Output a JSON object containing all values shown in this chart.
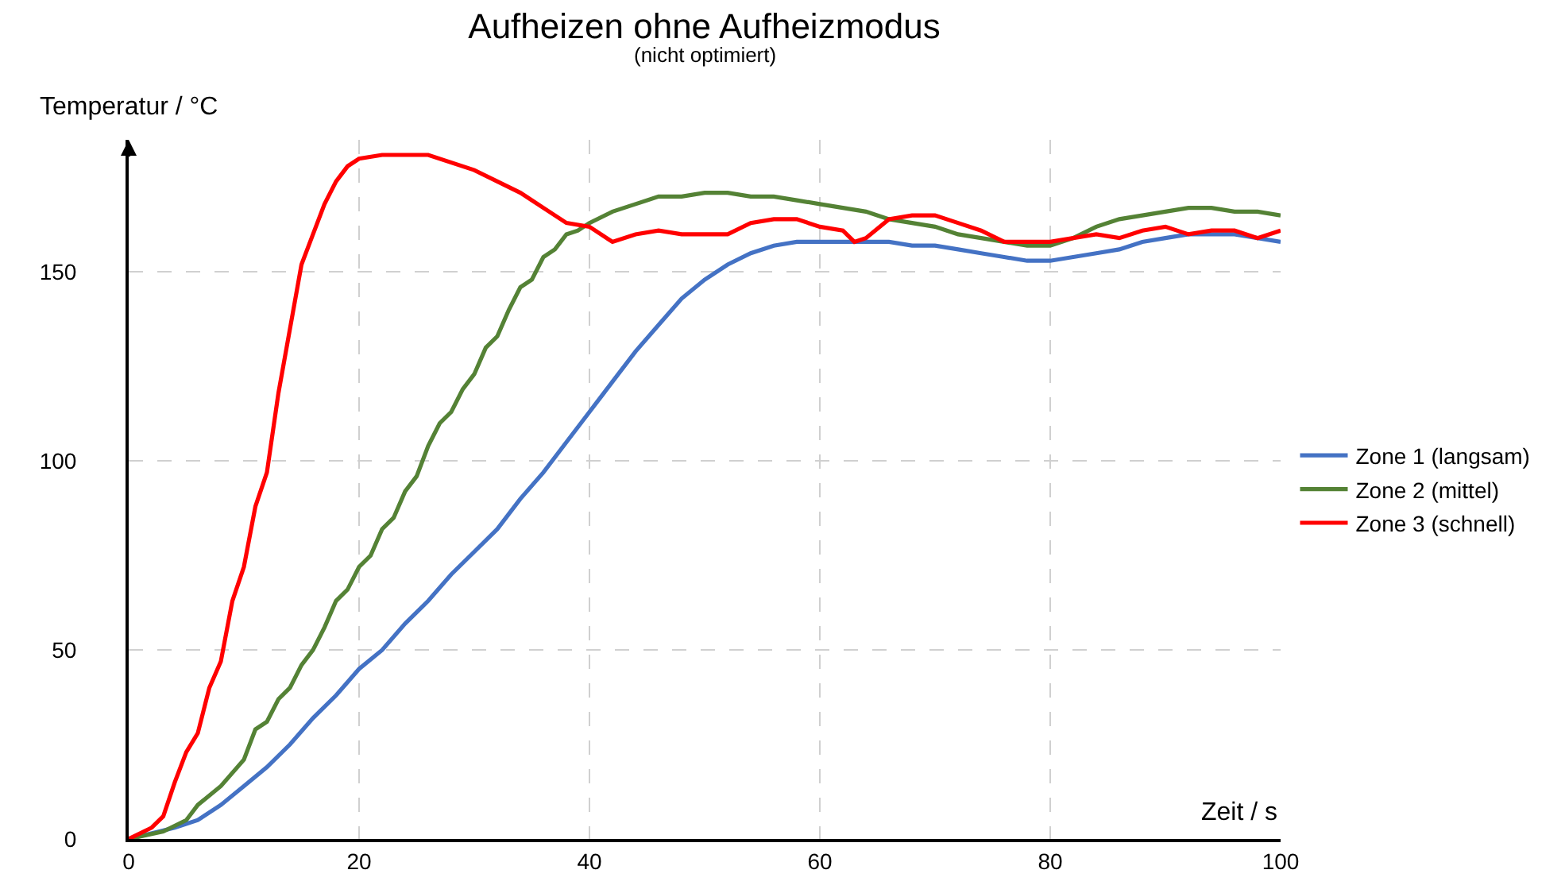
{
  "chart_data": {
    "type": "line",
    "title": "Aufheizen ohne Aufheizmodus",
    "subtitle": "(nicht optimiert)",
    "xlabel": "Zeit / s",
    "ylabel": "Temperatur / °C",
    "xlim": [
      0,
      100
    ],
    "xticks": [
      0,
      20,
      40,
      60,
      80,
      100
    ],
    "ylim": [
      0,
      185
    ],
    "yticks": [
      0,
      50,
      100,
      150
    ],
    "grid": true,
    "legend": "right",
    "line_style": "solid",
    "marker": "none",
    "series": [
      {
        "name": "Zone 1 (langsam)",
        "color": "#4472c4",
        "x": [
          0,
          4,
          6,
          8,
          10,
          12,
          14,
          16,
          18,
          20,
          22,
          24,
          26,
          28,
          30,
          32,
          34,
          36,
          38,
          40,
          42,
          44,
          46,
          48,
          50,
          52,
          54,
          56,
          58,
          60,
          66,
          68,
          70,
          72,
          74,
          76,
          78,
          80,
          82,
          84,
          86,
          88,
          90,
          92,
          94,
          96,
          98,
          100
        ],
        "values": [
          0,
          3,
          5,
          9,
          14,
          19,
          25,
          32,
          38,
          45,
          50,
          57,
          63,
          70,
          76,
          82,
          90,
          97,
          105,
          113,
          121,
          129,
          136,
          143,
          148,
          152,
          155,
          157,
          158,
          158,
          158,
          157,
          157,
          156,
          155,
          154,
          153,
          153,
          154,
          155,
          156,
          158,
          159,
          160,
          160,
          160,
          159,
          158
        ]
      },
      {
        "name": "Zone 2 (mittel)",
        "color": "#548235",
        "x": [
          0,
          3,
          5,
          6,
          8,
          10,
          11,
          12,
          13,
          14,
          15,
          16,
          17,
          18,
          19,
          20,
          21,
          22,
          23,
          24,
          25,
          26,
          27,
          28,
          29,
          30,
          31,
          32,
          33,
          34,
          35,
          36,
          37,
          38,
          39,
          40,
          42,
          44,
          46,
          48,
          50,
          52,
          54,
          56,
          58,
          60,
          62,
          64,
          66,
          68,
          70,
          72,
          74,
          76,
          78,
          80,
          82,
          84,
          86,
          88,
          90,
          92,
          94,
          96,
          98,
          100
        ],
        "values": [
          0,
          2,
          5,
          9,
          14,
          21,
          29,
          31,
          37,
          40,
          46,
          50,
          56,
          63,
          66,
          72,
          75,
          82,
          85,
          92,
          96,
          104,
          110,
          113,
          119,
          123,
          130,
          133,
          140,
          146,
          148,
          154,
          156,
          160,
          161,
          163,
          166,
          168,
          170,
          170,
          171,
          171,
          170,
          170,
          169,
          168,
          167,
          166,
          164,
          163,
          162,
          160,
          159,
          158,
          157,
          157,
          159,
          162,
          164,
          165,
          166,
          167,
          167,
          166,
          166,
          165
        ]
      },
      {
        "name": "Zone 3 (schnell)",
        "color": "#ff0000",
        "x": [
          0,
          2,
          3,
          4,
          5,
          6,
          7,
          8,
          9,
          10,
          11,
          12,
          13,
          14,
          15,
          16,
          17,
          18,
          19,
          20,
          22,
          26,
          30,
          32,
          34,
          36,
          38,
          40,
          42,
          44,
          46,
          48,
          50,
          52,
          54,
          56,
          58,
          60,
          62,
          63,
          64,
          66,
          68,
          70,
          72,
          74,
          76,
          78,
          80,
          82,
          84,
          86,
          88,
          90,
          92,
          94,
          96,
          98,
          100
        ],
        "values": [
          0,
          3,
          6,
          15,
          23,
          28,
          40,
          47,
          63,
          72,
          88,
          97,
          118,
          135,
          152,
          160,
          168,
          174,
          178,
          180,
          181,
          181,
          177,
          174,
          171,
          167,
          163,
          162,
          158,
          160,
          161,
          160,
          160,
          160,
          163,
          164,
          164,
          162,
          161,
          158,
          159,
          164,
          165,
          165,
          163,
          161,
          158,
          158,
          158,
          159,
          160,
          159,
          161,
          162,
          160,
          161,
          161,
          159,
          161
        ]
      }
    ]
  }
}
